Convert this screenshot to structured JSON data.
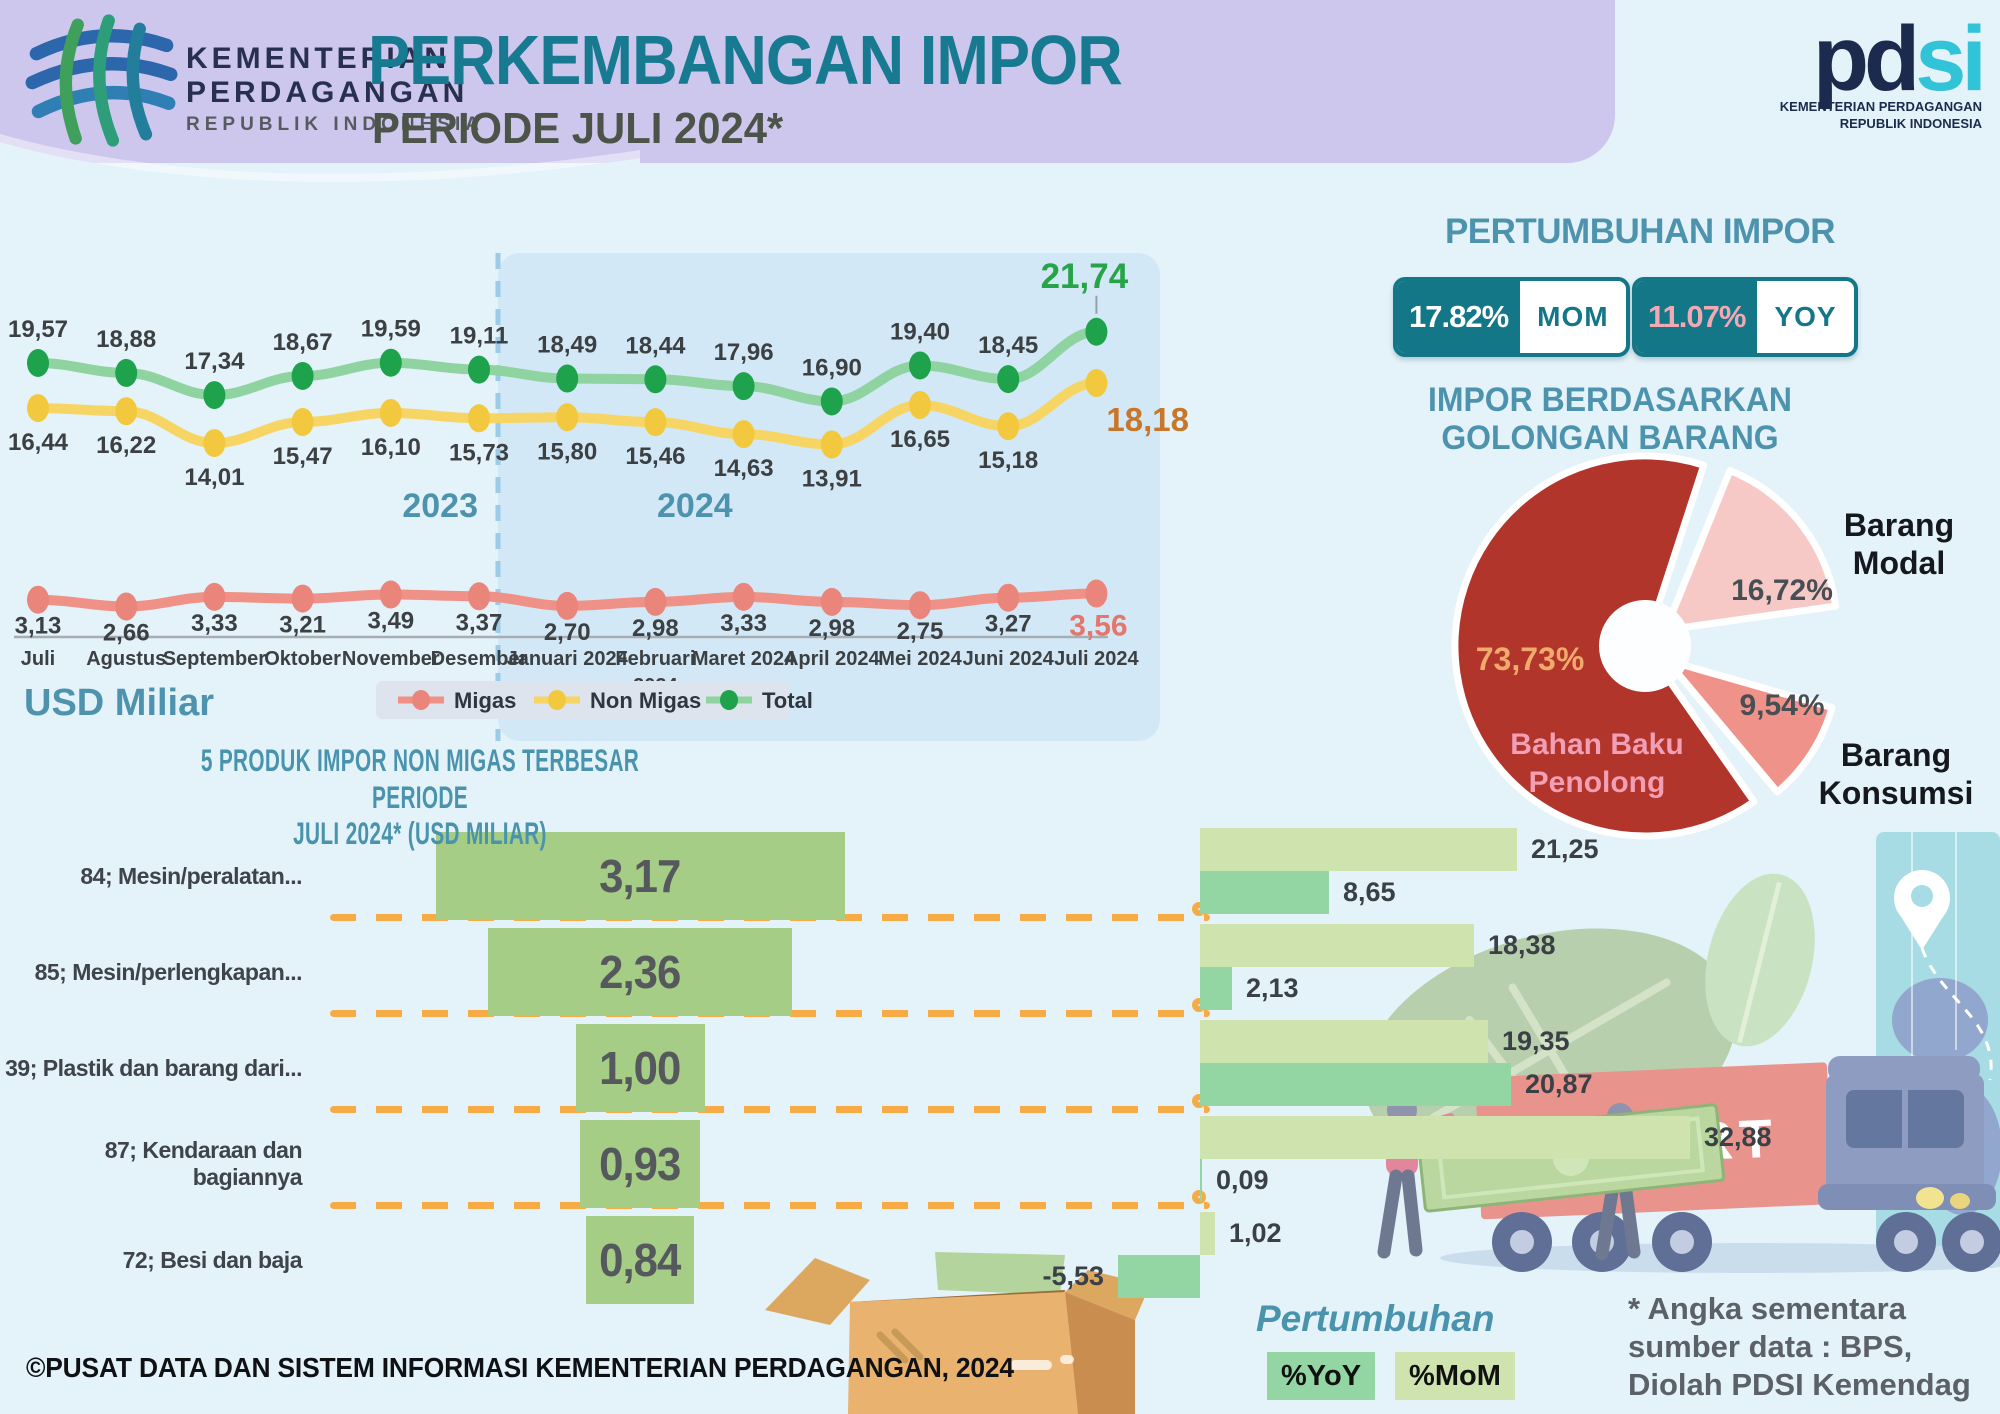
{
  "header": {
    "ministry": {
      "name_line1": "KEMENTERIAN",
      "name_line2": "PERDAGANGAN",
      "name_line3": "REPUBLIK INDONESIA"
    },
    "title": "PERKEMBANGAN IMPOR",
    "subtitle": "PERIODE JULI 2024*",
    "pdsi": {
      "pd": "pd",
      "si": "si",
      "caption_line1": "KEMENTERIAN PERDAGANGAN",
      "caption_line2": "REPUBLIK INDONESIA"
    }
  },
  "growth_summary": {
    "heading": "PERTUMBUHAN IMPOR",
    "mom": {
      "value": "17.82%",
      "label": "MOM"
    },
    "yoy": {
      "value": "11.07%",
      "label": "YOY"
    }
  },
  "pie_heading": {
    "line1": "IMPOR BERDASARKAN",
    "line2": "GOLONGAN BARANG"
  },
  "top_products": {
    "title_line1": "5 PRODUK IMPOR NON MIGAS TERBESAR PERIODE",
    "title_line2": "JULI 2024* (USD MILIAR)"
  },
  "growth_legend": {
    "title": "Pertumbuhan",
    "yoy_label": "%YoY",
    "mom_label": "%MoM"
  },
  "footnote": {
    "line1": "* Angka sementara",
    "line2": "sumber data : BPS,",
    "line3": "Diolah PDSI Kemendag"
  },
  "footer": "©PUSAT DATA DAN SISTEM INFORMASI KEMENTERIAN PERDAGANGAN, 2024",
  "illustration": {
    "truck_label": "IMPORT"
  },
  "colors": {
    "background": "#e4f2f9",
    "header_lavender": "#cdc7ee",
    "title_teal": "#177a90",
    "heading_teal": "#4e93ad",
    "badge_teal": "#147788",
    "yoy_pink": "#f2a9b4",
    "dash_orange": "#f6ab46",
    "funnel_green": "#a6cd86",
    "mom_bar_green": "#cfe3af",
    "yoy_bar_green": "#93d6a3"
  },
  "chart_data": [
    {
      "type": "line",
      "unit_label": "USD Miliar",
      "year_left": "2023",
      "year_right": "2024",
      "categories": [
        "Juli",
        "Agustus",
        "September",
        "Oktober",
        "November",
        "Desember",
        "Januari 2024",
        "Februari 2024",
        "Maret 2024",
        "April 2024",
        "Mei 2024",
        "Juni 2024",
        "Juli 2024"
      ],
      "series": [
        {
          "name": "Migas",
          "line_color": "#ef9186",
          "dot_color": "#e9857b",
          "final_label_color": "#e4766c",
          "values": [
            3.13,
            2.66,
            3.33,
            3.21,
            3.49,
            3.37,
            2.7,
            2.98,
            3.33,
            2.98,
            2.75,
            3.27,
            3.56
          ]
        },
        {
          "name": "Non Migas",
          "line_color": "#f7d564",
          "dot_color": "#f2c93e",
          "final_label_color": "#c8772a",
          "values": [
            16.44,
            16.22,
            14.01,
            15.47,
            16.1,
            15.73,
            15.8,
            15.46,
            14.63,
            13.91,
            16.65,
            15.18,
            18.18
          ]
        },
        {
          "name": "Total",
          "line_color": "#8ed3a0",
          "dot_color": "#1fa24c",
          "final_label_color": "#27a348",
          "values": [
            19.57,
            18.88,
            17.34,
            18.67,
            19.59,
            19.11,
            18.49,
            18.44,
            17.96,
            16.9,
            19.4,
            18.45,
            21.74
          ]
        }
      ],
      "legend_order": [
        "Migas",
        "Non Migas",
        "Total"
      ]
    },
    {
      "type": "pie",
      "heading": "IMPOR BERDASARKAN GOLONGAN BARANG",
      "slices": [
        {
          "label": "Bahan Baku Penolong",
          "value": 73.73,
          "pct_label": "73,73%",
          "color": "#b2352b"
        },
        {
          "label": "Barang Modal",
          "value": 16.72,
          "pct_label": "16,72%",
          "color": "#f7c9c6"
        },
        {
          "label": "Barang Konsumsi",
          "value": 9.54,
          "pct_label": "9,54%",
          "color": "#ee928a"
        }
      ]
    },
    {
      "type": "bar",
      "title": "5 PRODUK IMPOR NON MIGAS TERBESAR PERIODE JULI 2024* (USD MILIAR)",
      "unit": "USD Miliar",
      "rows": [
        {
          "label": "84; Mesin/peralatan...",
          "value": 3.17,
          "mom_pct": 21.25,
          "yoy_pct": 8.65
        },
        {
          "label": "85; Mesin/perlengkapan...",
          "value": 2.36,
          "mom_pct": 18.38,
          "yoy_pct": 2.13
        },
        {
          "label": "39; Plastik dan barang dari...",
          "value": 1.0,
          "mom_pct": 19.35,
          "yoy_pct": 20.87
        },
        {
          "label": "87; Kendaraan dan bagiannya",
          "value": 0.93,
          "mom_pct": 32.88,
          "yoy_pct": 0.09
        },
        {
          "label": "72; Besi dan baja",
          "value": 0.84,
          "mom_pct": 1.02,
          "yoy_pct": -5.53
        }
      ]
    }
  ]
}
